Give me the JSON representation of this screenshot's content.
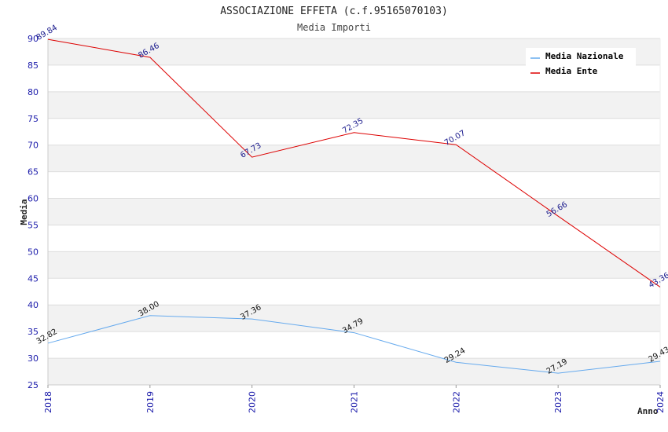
{
  "chart_data": {
    "type": "line",
    "title": "ASSOCIAZIONE EFFETA (c.f.95165070103)",
    "subtitle": "Media Importi",
    "xlabel": "Anno",
    "ylabel": "Media",
    "ylim": [
      25,
      90
    ],
    "yticks": [
      25,
      30,
      35,
      40,
      45,
      50,
      55,
      60,
      65,
      70,
      75,
      80,
      85,
      90
    ],
    "categories": [
      "2018",
      "2019",
      "2020",
      "2021",
      "2022",
      "2023",
      "2024"
    ],
    "series": [
      {
        "name": "Media Nazionale",
        "color": "#66aaee",
        "values": [
          32.82,
          38.0,
          37.36,
          34.79,
          29.24,
          27.19,
          29.43
        ],
        "labels": [
          "32.82",
          "38.00",
          "37.36",
          "34.79",
          "29.24",
          "27.19",
          "29.43"
        ]
      },
      {
        "name": "Media Ente",
        "color": "#dd0000",
        "values": [
          89.84,
          86.46,
          67.73,
          72.35,
          70.07,
          56.66,
          43.36
        ],
        "labels": [
          "89.84",
          "86.46",
          "67.73",
          "72.35",
          "70.07",
          "56.66",
          "43.36"
        ]
      }
    ],
    "legend_position": "top-right",
    "grid": true
  }
}
